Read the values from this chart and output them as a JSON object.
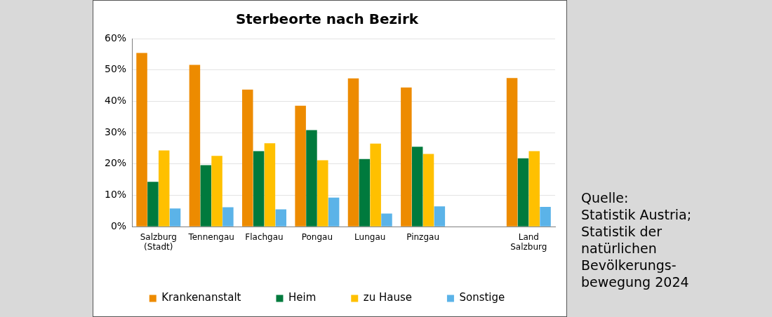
{
  "chart_data": {
    "type": "bar",
    "title": "Sterbeorte nach Bezirk",
    "categories": [
      "Salzburg (Stadt)",
      "Tennengau",
      "Flachgau",
      "Pongau",
      "Lungau",
      "Pinzgau",
      null,
      "Land Salzburg"
    ],
    "series": [
      {
        "name": "Krankenanstalt",
        "color": "#ed8b00",
        "values": [
          55.4,
          51.6,
          43.7,
          38.6,
          47.3,
          44.4,
          null,
          47.4
        ]
      },
      {
        "name": "Heim",
        "color": "#007a3d",
        "values": [
          14.3,
          19.6,
          24.1,
          30.8,
          21.6,
          25.5,
          null,
          21.8
        ]
      },
      {
        "name": "zu Hause",
        "color": "#ffc000",
        "values": [
          24.3,
          22.6,
          26.6,
          21.2,
          26.5,
          23.2,
          null,
          24.1
        ]
      },
      {
        "name": "Sonstige",
        "color": "#5bb3e8",
        "values": [
          5.8,
          6.2,
          5.5,
          9.3,
          4.2,
          6.5,
          null,
          6.3
        ]
      }
    ],
    "ylim": [
      0,
      60
    ],
    "yticks": [
      {
        "value": 0,
        "label": "0%"
      },
      {
        "value": 10,
        "label": "10%"
      },
      {
        "value": 20,
        "label": "20%"
      },
      {
        "value": 30,
        "label": "30%"
      },
      {
        "value": 40,
        "label": "40%"
      },
      {
        "value": 50,
        "label": "50%"
      },
      {
        "value": 60,
        "label": "60%"
      }
    ],
    "grid": "y",
    "legend": "bottom",
    "annotations": [
      "Quelle:\nStatistik Austria;\nStatistik der\nnatürlichen\nBevölkerungs-\nbewegung 2024"
    ]
  }
}
